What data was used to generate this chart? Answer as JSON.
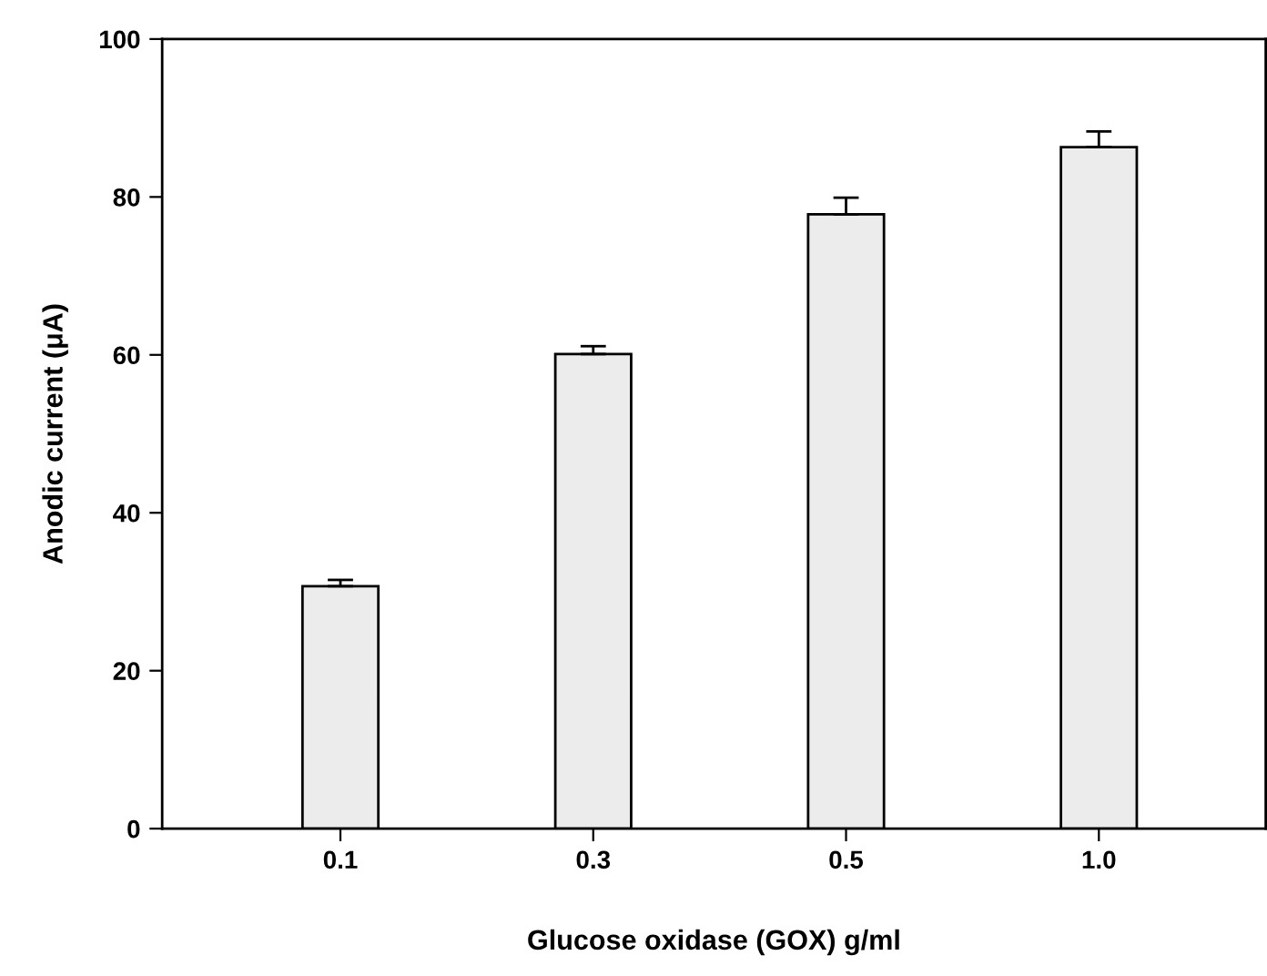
{
  "chart_data": {
    "type": "bar",
    "xlabel": "Glucose oxidase (GOX) g/ml",
    "ylabel": "Anodic current (μA)",
    "categories": [
      "0.1",
      "0.3",
      "0.5",
      "1.0"
    ],
    "values": [
      30.7,
      60.1,
      77.8,
      86.3
    ],
    "errors": [
      [
        30.7,
        31.5
      ],
      [
        60.1,
        61.1
      ],
      [
        77.8,
        79.9
      ],
      [
        86.3,
        88.3
      ]
    ],
    "color": "#ececec",
    "ylim": [
      0,
      100
    ],
    "yticks": [
      0,
      20,
      40,
      60,
      80,
      100
    ],
    "grid": false
  }
}
